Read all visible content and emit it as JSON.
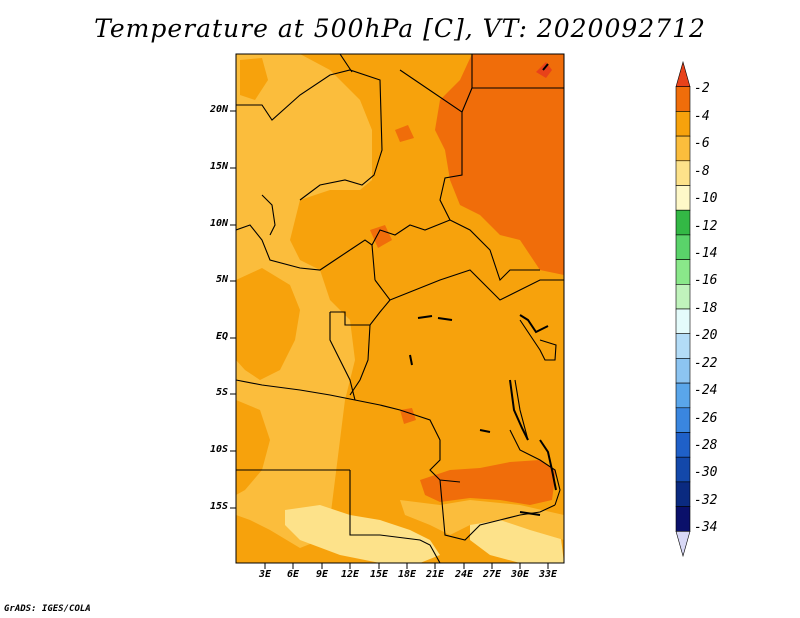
{
  "title": "Temperature at 500hPa [C], VT: 2020092712",
  "credit": "GrADS: IGES/COLA",
  "lat_ticks": [
    "20N",
    "15N",
    "10N",
    "5N",
    "EQ",
    "5S",
    "10S",
    "15S"
  ],
  "lon_ticks": [
    "3E",
    "6E",
    "9E",
    "12E",
    "15E",
    "18E",
    "21E",
    "24E",
    "27E",
    "30E",
    "33E"
  ],
  "colorbar": {
    "labels": [
      "-2",
      "-4",
      "-6",
      "-8",
      "-10",
      "-12",
      "-14",
      "-16",
      "-18",
      "-20",
      "-22",
      "-24",
      "-26",
      "-28",
      "-30",
      "-32",
      "-34"
    ],
    "colors": [
      "#e8421a",
      "#f06d0a",
      "#f7a20c",
      "#fbbd3c",
      "#fde28a",
      "#fef8c8",
      "#33b845",
      "#5ad36a",
      "#8ae88a",
      "#c0f3bc",
      "#e4fbfb",
      "#b3dcf7",
      "#8cc4f1",
      "#5aa6ea",
      "#3a86df",
      "#1f60c8",
      "#1348aa",
      "#0a2a80",
      "#0a106a",
      "#d8d8f6"
    ]
  },
  "map": {
    "region": "Central Africa",
    "lat_range": [
      -19,
      24.5
    ],
    "lon_range": [
      0,
      34
    ],
    "field_colors": {
      "warm": "#f06d0a",
      "main": "#f7a20c",
      "mid": "#fbbd3c",
      "cool": "#fde28a"
    }
  }
}
